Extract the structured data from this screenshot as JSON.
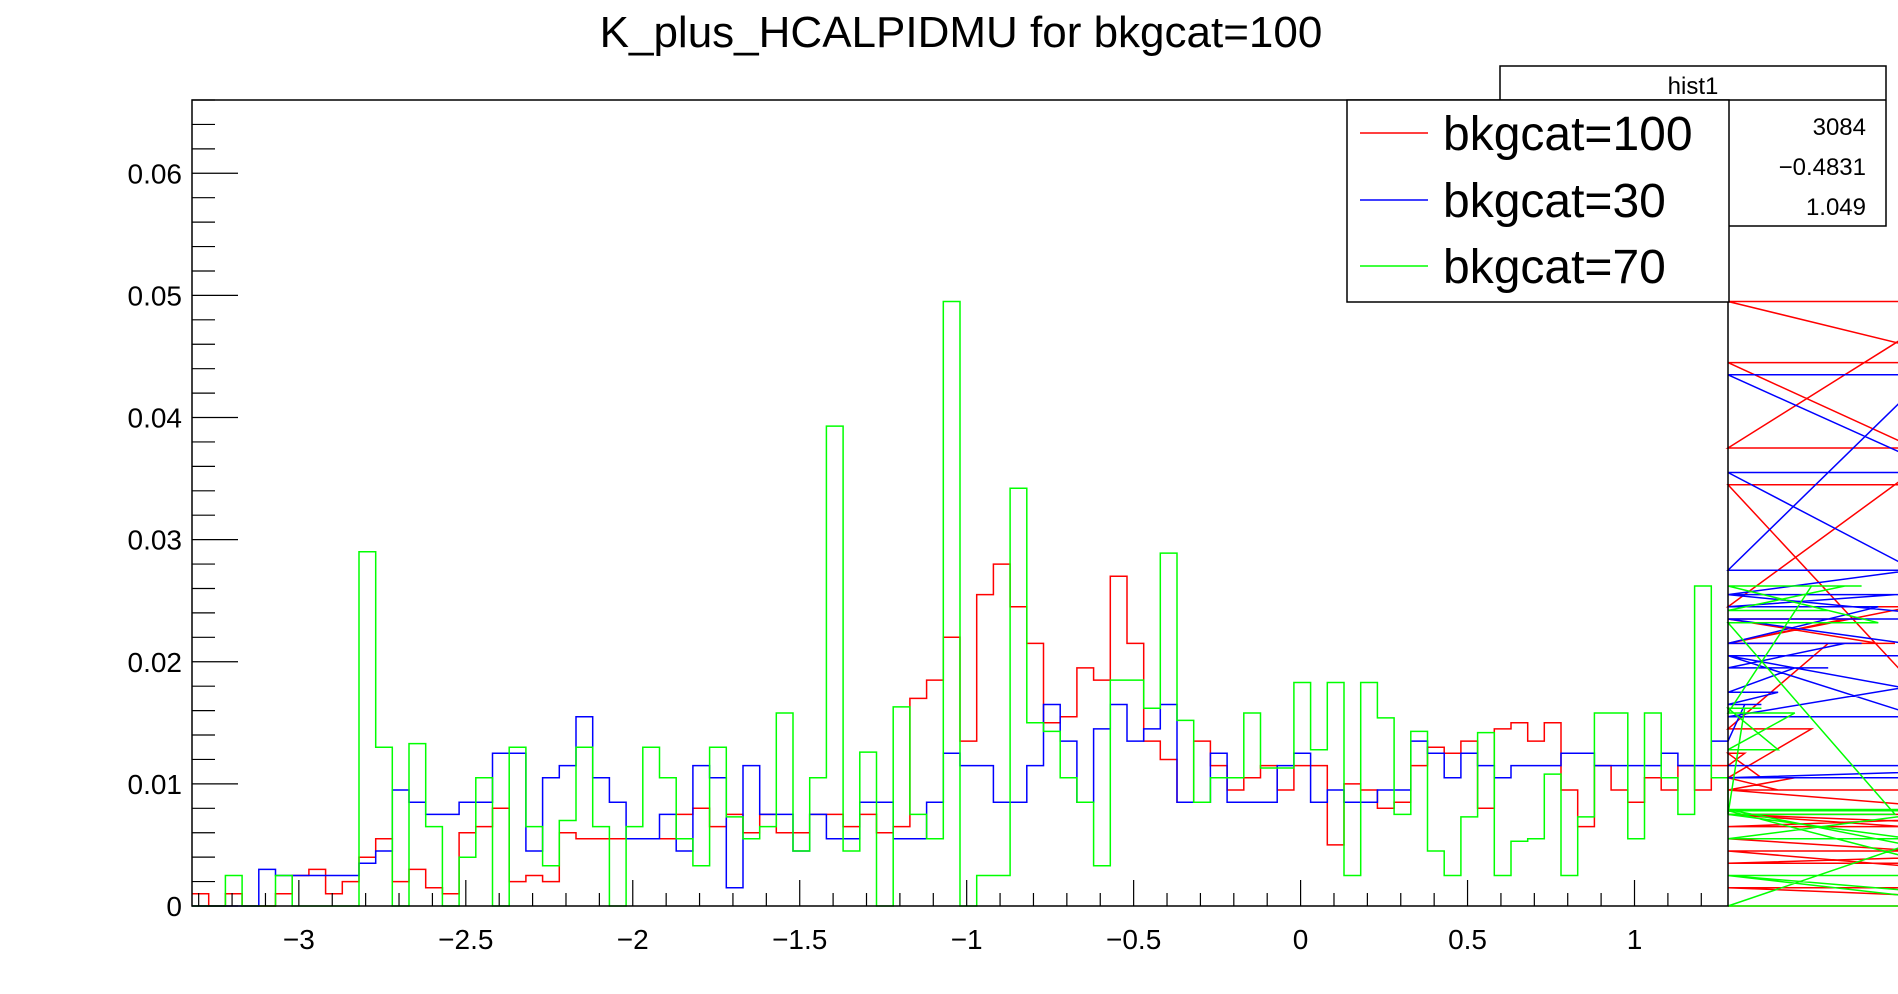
{
  "chart_data": {
    "type": "histogram",
    "title": "K_plus_HCALPIDMU for bkgcat=100",
    "xlabel": "",
    "ylabel": "",
    "xlim": [
      -3.32,
      1.28
    ],
    "ylim": [
      0,
      0.066
    ],
    "bin_width": 0.05,
    "x_start": -3.32,
    "x_ticks": [
      -3,
      -2.5,
      -2,
      -1.5,
      -1,
      -0.5,
      0,
      0.5,
      1
    ],
    "x_tick_labels": [
      "−3",
      "−2.5",
      "−2",
      "−1.5",
      "−1",
      "−0.5",
      "0",
      "0.5",
      "1"
    ],
    "y_ticks": [
      0,
      0.01,
      0.02,
      0.03,
      0.04,
      0.05,
      0.06
    ],
    "y_tick_labels": [
      "0",
      "0.01",
      "0.02",
      "0.03",
      "0.04",
      "0.05",
      "0.06"
    ],
    "series": [
      {
        "name": "bkgcat=100",
        "color": "#ff0000",
        "values": [
          0.001,
          0,
          0.001,
          0,
          0,
          0.001,
          0.0025,
          0.003,
          0.001,
          0.002,
          0.004,
          0.0055,
          0.002,
          0.003,
          0.0015,
          0.001,
          0.006,
          0.0065,
          0.008,
          0.002,
          0.0025,
          0.002,
          0.006,
          0.0055,
          0.0055,
          0.0055,
          0.0055,
          0.0055,
          0.0055,
          0.0075,
          0.008,
          0.0065,
          0.0075,
          0.006,
          0.0075,
          0.006,
          0.006,
          0.0075,
          0.0075,
          0.0065,
          0.0075,
          0.006,
          0.0065,
          0.017,
          0.0185,
          0.022,
          0.0135,
          0.0255,
          0.028,
          0.0245,
          0.0215,
          0.015,
          0.0155,
          0.0195,
          0.0185,
          0.027,
          0.0215,
          0.0135,
          0.012,
          0.0085,
          0.0135,
          0.0115,
          0.0095,
          0.0105,
          0.0115,
          0.0095,
          0.0115,
          0.0115,
          0.005,
          0.01,
          0.0095,
          0.008,
          0.0085,
          0.0115,
          0.013,
          0.0125,
          0.0135,
          0.008,
          0.0145,
          0.015,
          0.0135,
          0.015,
          0.0095,
          0.0065,
          0.0115,
          0.0095,
          0.0085,
          0.0105,
          0.0095,
          0.0115,
          0.0095,
          0.0115,
          0.0115,
          0.0125,
          0.0105,
          0.0095,
          0.0105,
          0.0145,
          0.0215,
          0.0235,
          0.0235,
          0.0215,
          0.0215,
          0.0245,
          0.0245,
          0.0375,
          0.0495,
          0.0445,
          0.0345,
          0.0095,
          0.0075,
          0.0065,
          0.0075,
          0.0055,
          0.0055,
          0.0035,
          0.0045,
          0.0045,
          0.0015,
          0
        ]
      },
      {
        "name": "bkgcat=30",
        "color": "#0000ff",
        "values": [
          0,
          0,
          0,
          0,
          0.003,
          0.0025,
          0.0025,
          0.0025,
          0.0025,
          0.0025,
          0.0035,
          0.0045,
          0.0095,
          0.0085,
          0.0075,
          0.0075,
          0.0085,
          0.0085,
          0.0125,
          0.0125,
          0.0045,
          0.0105,
          0.0115,
          0.0155,
          0.0105,
          0.0085,
          0.0055,
          0.0055,
          0.0075,
          0.0045,
          0.0115,
          0.0105,
          0.0015,
          0.0115,
          0.0075,
          0.0075,
          0.0045,
          0.0075,
          0.0055,
          0.0055,
          0.0085,
          0.0085,
          0.0055,
          0.0055,
          0.0085,
          0.0125,
          0.0115,
          0.0115,
          0.0085,
          0.0085,
          0.0115,
          0.0165,
          0.0135,
          0.0085,
          0.0145,
          0.0165,
          0.0135,
          0.0145,
          0.0165,
          0.0085,
          0.0085,
          0.0125,
          0.0085,
          0.0085,
          0.0085,
          0.0115,
          0.0125,
          0.0085,
          0.0095,
          0.0085,
          0.0085,
          0.0095,
          0.0095,
          0.0135,
          0.0125,
          0.0105,
          0.0125,
          0.0115,
          0.0105,
          0.0115,
          0.0115,
          0.0115,
          0.0125,
          0.0125,
          0.0115,
          0.0115,
          0.0115,
          0.0115,
          0.0125,
          0.0115,
          0.0115,
          0.0135,
          0.0135,
          0.0165,
          0.0165,
          0.0175,
          0.0195,
          0.0195,
          0.0195,
          0.0215,
          0.0215,
          0.0245,
          0.0255,
          0.0275,
          0.0435,
          0.0355,
          0.0255,
          0.0235,
          0.0205,
          0.0205,
          0.0205,
          0.0205,
          0.0155,
          0.0155,
          0.0205,
          0.0105,
          0.0115,
          0.0115
        ]
      },
      {
        "name": "bkgcat=70",
        "color": "#00ff00",
        "values": [
          0,
          0,
          0.0025,
          0,
          0,
          0.0025,
          0,
          0,
          0,
          0,
          0.029,
          0.013,
          0,
          0.0133,
          0.0065,
          0,
          0.004,
          0.0105,
          0,
          0.013,
          0.0065,
          0.0033,
          0.007,
          0.013,
          0.0065,
          0,
          0.0065,
          0.013,
          0.0105,
          0.0055,
          0.0033,
          0.013,
          0.0073,
          0.0055,
          0.0065,
          0.0158,
          0.0045,
          0.0105,
          0.0393,
          0.0045,
          0.0126,
          0,
          0.0163,
          0.0075,
          0.0055,
          0.0495,
          0,
          0.0025,
          0.0025,
          0.0342,
          0.015,
          0.0143,
          0.0105,
          0.0085,
          0.0033,
          0.0185,
          0.0185,
          0.0162,
          0.0289,
          0.0152,
          0.0085,
          0.0105,
          0.0105,
          0.0158,
          0.0113,
          0.0113,
          0.0183,
          0.0128,
          0.0183,
          0.0025,
          0.0183,
          0.0154,
          0.0075,
          0.0143,
          0.0045,
          0.0025,
          0.0073,
          0.0142,
          0.0025,
          0.0053,
          0.0055,
          0.0108,
          0.0025,
          0.0073,
          0.0158,
          0.0158,
          0.0055,
          0.0158,
          0.0105,
          0.0075,
          0.0262,
          0.0105,
          0.0075,
          0.0162,
          0.0162,
          0.0128,
          0.0158,
          0.0262,
          0.0242,
          0.0262,
          0.0262,
          0.0232,
          0.0075,
          0.0055,
          0.0055,
          0.0078,
          0.0078,
          0.0025,
          0,
          0.0079,
          0.0079,
          0.0079,
          0.0025,
          0.0025,
          0,
          0
        ]
      }
    ],
    "stats_box": {
      "title": "hist1",
      "values": [
        "3084",
        "−0.4831",
        "1.049"
      ]
    },
    "legend": {
      "position": "top-right",
      "entries": [
        "bkgcat=100",
        "bkgcat=30",
        "bkgcat=70"
      ]
    },
    "grid": false
  }
}
